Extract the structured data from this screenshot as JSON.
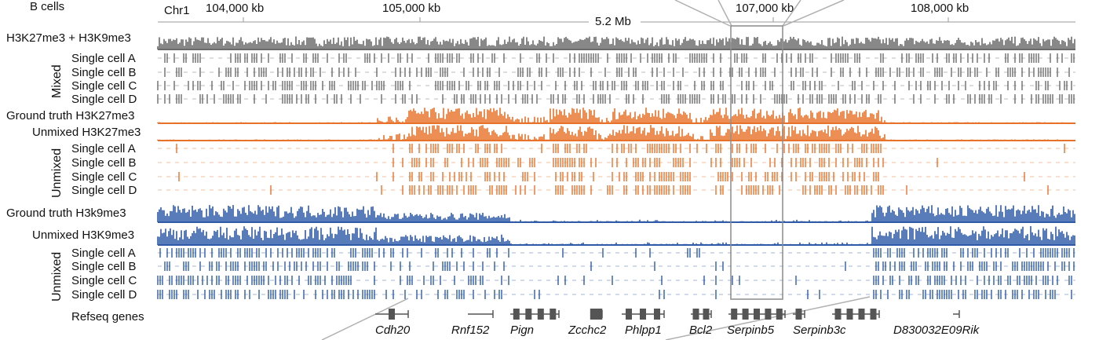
{
  "panel_label": "B cells",
  "chrom": "Chr1",
  "ticks": [
    "104,000 kb",
    "105,000 kb",
    "107,000 kb",
    "108,000 kb"
  ],
  "span_label": "5.2 Mb",
  "mixed_track": "H3K27me3 + H3K9me3",
  "group_mixed": "Mixed",
  "group_unmixed": "Unmixed",
  "cells": [
    "Single cell A",
    "Single cell B",
    "Single cell C",
    "Single cell D"
  ],
  "gt_k27": "Ground truth H3K27me3",
  "unmixed_k27": "Unmixed H3K27me3",
  "gt_k9": "Ground truth H3k9me3",
  "unmixed_k9": "Unmixed H3K9me3",
  "refseq": "Refseq genes",
  "genes": [
    "Cdh20",
    "Rnf152",
    "Pign",
    "Zcchc2",
    "Phlpp1",
    "Bcl2",
    "Serpinb5",
    "Serpinb3c",
    "D830032E09Rik"
  ],
  "colors": {
    "mixed": "#6b6b6b",
    "k27": "#e8722a",
    "k9": "#2e5aa8",
    "gene": "#555555"
  }
}
